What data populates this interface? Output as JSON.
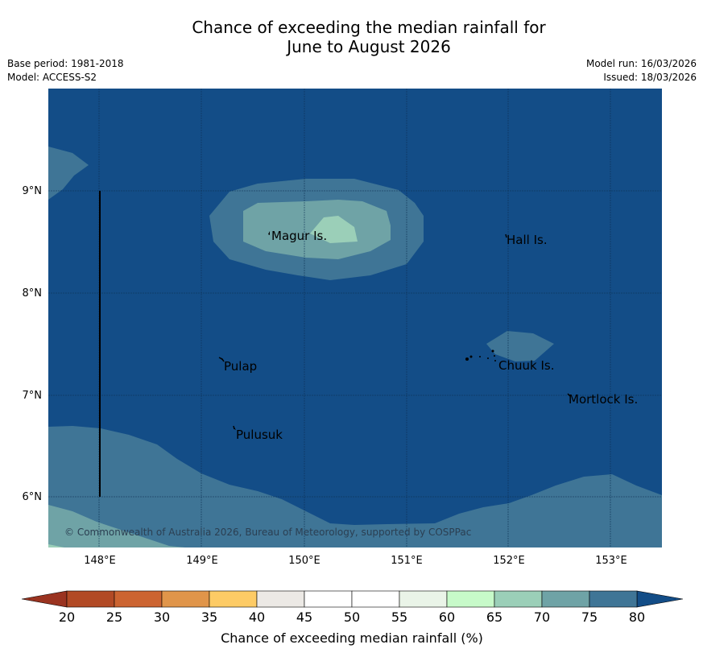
{
  "title_line1": "Chance of exceeding the median rainfall for",
  "title_line2": "June to August 2026",
  "base_period": "Base period: 1981-2018",
  "model": "Model: ACCESS-S2",
  "model_run": "Model run: 16/03/2026",
  "issued": "Issued: 18/03/2026",
  "copyright": "© Commonwealth of Australia 2026, Bureau of Meteorology, supported by COSPPac",
  "lon_ticks": [
    "148°E",
    "149°E",
    "150°E",
    "151°E",
    "152°E",
    "153°E"
  ],
  "lat_ticks": [
    "9°N",
    "8°N",
    "7°N",
    "6°N"
  ],
  "places": [
    "Magur Is.",
    "Hall Is.",
    "Pulap",
    "Chuuk Is.",
    "Mortlock Is.",
    "Pulusuk"
  ],
  "colorbar": {
    "label": "Chance of exceeding median rainfall (%)",
    "ticks": [
      "20",
      "25",
      "30",
      "35",
      "40",
      "45",
      "50",
      "55",
      "60",
      "65",
      "70",
      "75",
      "80"
    ],
    "colors": [
      "#b24a25",
      "#cc6431",
      "#e0954a",
      "#fdcb65",
      "#ece9e5",
      "#ffffff",
      "#ffffff",
      "#eaf4e8",
      "#c7fac9",
      "#9bcfb8",
      "#6fa3a6",
      "#3f7596"
    ],
    "under": "#9a3320",
    "over": "#134d87"
  },
  "legend_colors": {
    "c80": "#134d87",
    "c75": "#3f7596",
    "c70": "#6fa3a6",
    "c65": "#9bcfb8"
  }
}
